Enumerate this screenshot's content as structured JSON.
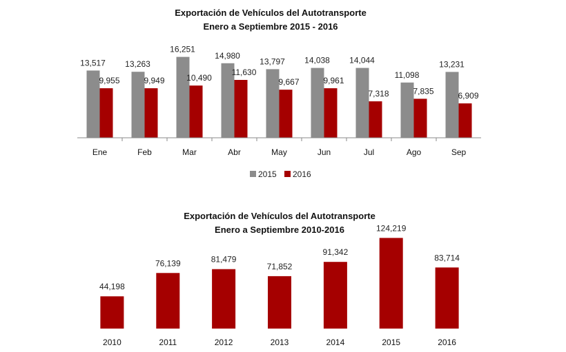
{
  "chart_data": [
    {
      "type": "bar",
      "title": "Exportación de Vehículos del Autotransporte",
      "subtitle": "Enero a Septiembre 2015 - 2016",
      "categories": [
        "Ene",
        "Feb",
        "Mar",
        "Abr",
        "May",
        "Jun",
        "Jul",
        "Ago",
        "Sep"
      ],
      "series": [
        {
          "name": "2015",
          "color": "#8c8c8c",
          "values": [
            13517,
            13263,
            16251,
            14980,
            13797,
            14038,
            14044,
            11098,
            13231
          ],
          "labels": [
            "13,517",
            "13,263",
            "16,251",
            "14,980",
            "13,797",
            "14,038",
            "14,044",
            "11,098",
            "13,231"
          ]
        },
        {
          "name": "2016",
          "color": "#a50000",
          "values": [
            9955,
            9949,
            10490,
            11630,
            9667,
            9961,
            7318,
            7835,
            6909
          ],
          "labels": [
            "9,955",
            "9,949",
            "10,490",
            "11,630",
            "9,667",
            "9,961",
            "7,318",
            "7,835",
            "6,909"
          ]
        }
      ],
      "ylim": [
        0,
        18000
      ],
      "legend": "bottom",
      "grid": false
    },
    {
      "type": "bar",
      "title": "Exportación de Vehículos del Autotransporte",
      "subtitle": "Enero a Septiembre 2010-2016",
      "categories": [
        "2010",
        "2011",
        "2012",
        "2013",
        "2014",
        "2015",
        "2016"
      ],
      "series": [
        {
          "color": "#a50000",
          "values": [
            44198,
            76139,
            81479,
            71852,
            91342,
            124219,
            83714
          ],
          "labels": [
            "44,198",
            "76,139",
            "81,479",
            "71,852",
            "91,342",
            "124,219",
            "83,714"
          ]
        }
      ],
      "ylim": [
        0,
        135000
      ],
      "grid": false
    }
  ]
}
